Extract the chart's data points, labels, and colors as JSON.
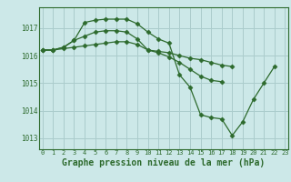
{
  "background_color": "#cce8e8",
  "grid_color": "#aacccc",
  "line_color": "#2d6a2d",
  "marker_color": "#2d6a2d",
  "xlabel": "Graphe pression niveau de la mer (hPa)",
  "xlabel_fontsize": 7,
  "xticks": [
    0,
    1,
    2,
    3,
    4,
    5,
    6,
    7,
    8,
    9,
    10,
    11,
    12,
    13,
    14,
    15,
    16,
    17,
    18,
    19,
    20,
    21,
    22,
    23
  ],
  "yticks": [
    1013,
    1014,
    1015,
    1016,
    1017
  ],
  "ylim": [
    1012.6,
    1017.75
  ],
  "xlim": [
    -0.3,
    23.3
  ],
  "series": [
    [
      1016.2,
      1016.2,
      1016.3,
      1016.55,
      1017.2,
      1017.28,
      1017.32,
      1017.32,
      1017.32,
      1017.15,
      1016.85,
      1016.6,
      1016.45,
      1015.3,
      1014.85,
      1013.85,
      1013.75,
      1013.7,
      1013.1,
      1013.6,
      1014.4,
      1015.0,
      1015.6,
      null
    ],
    [
      1016.2,
      1016.2,
      1016.3,
      1016.55,
      1016.7,
      1016.85,
      1016.9,
      1016.9,
      1016.85,
      1016.6,
      1016.2,
      1016.15,
      1016.1,
      1016.0,
      1015.9,
      1015.85,
      1015.75,
      1015.65,
      1015.6,
      null,
      null,
      null,
      null,
      null
    ],
    [
      1016.2,
      1016.2,
      1016.25,
      1016.3,
      1016.35,
      1016.4,
      1016.45,
      1016.5,
      1016.5,
      1016.4,
      1016.2,
      1016.1,
      1015.95,
      1015.75,
      1015.5,
      1015.25,
      1015.1,
      1015.05,
      null,
      null,
      null,
      null,
      null,
      null
    ]
  ]
}
